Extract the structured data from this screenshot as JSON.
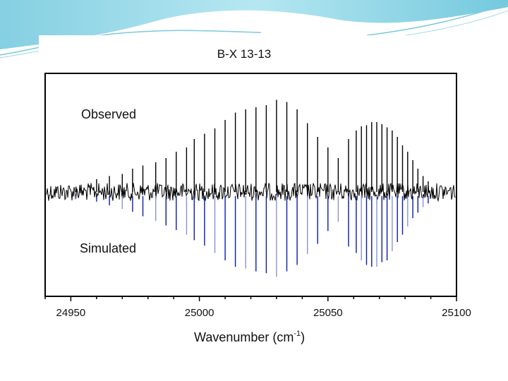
{
  "chart_data": {
    "type": "line",
    "title": "B-X 13-13",
    "xlabel": "Wavenumber (cm",
    "xlabel_superscript": "-1",
    "xlabel_close": ")",
    "xlim": [
      24940,
      25100
    ],
    "ylim": [
      -1.0,
      1.0
    ],
    "x_ticks": [
      24950,
      25000,
      25050,
      25100
    ],
    "x_tick_labels": [
      "24950",
      "25000",
      "25050",
      "25100"
    ],
    "series": [
      {
        "name": "Observed",
        "color": "#000000",
        "direction": "up",
        "baseline_noise": 0.06,
        "x": [
          24952,
          24960,
          24965,
          24970,
          24974,
          24978,
          24983,
          24987,
          24991,
          24995,
          24998,
          25002,
          25006,
          25010,
          25014,
          25018,
          25022,
          25026,
          25030,
          25034,
          25038,
          25042,
          25046,
          25050,
          25054,
          25058,
          25061,
          25063,
          25065,
          25067,
          25069,
          25071,
          25073,
          25075,
          25077,
          25079,
          25081,
          25083,
          25085,
          25087,
          25089
        ],
        "values": [
          0.05,
          0.12,
          0.15,
          0.17,
          0.22,
          0.25,
          0.28,
          0.32,
          0.38,
          0.42,
          0.5,
          0.55,
          0.6,
          0.68,
          0.75,
          0.78,
          0.8,
          0.82,
          0.87,
          0.85,
          0.78,
          0.65,
          0.52,
          0.42,
          0.32,
          0.5,
          0.58,
          0.62,
          0.63,
          0.66,
          0.66,
          0.64,
          0.61,
          0.58,
          0.52,
          0.44,
          0.38,
          0.3,
          0.22,
          0.15,
          0.1
        ]
      },
      {
        "name": "Simulated",
        "color": "#0a1aa8",
        "direction": "down",
        "baseline_noise": 0.0,
        "x": [
          24952,
          24960,
          24965,
          24970,
          24974,
          24978,
          24983,
          24987,
          24991,
          24995,
          24998,
          25002,
          25006,
          25010,
          25014,
          25018,
          25022,
          25026,
          25030,
          25034,
          25038,
          25042,
          25046,
          25050,
          25054,
          25058,
          25061,
          25063,
          25065,
          25067,
          25069,
          25071,
          25073,
          25075,
          25077,
          25079,
          25081,
          25083,
          25085,
          25087,
          25089
        ],
        "values": [
          0.03,
          0.06,
          0.1,
          0.14,
          0.17,
          0.22,
          0.27,
          0.32,
          0.37,
          0.42,
          0.48,
          0.54,
          0.62,
          0.7,
          0.77,
          0.79,
          0.82,
          0.84,
          0.88,
          0.82,
          0.75,
          0.63,
          0.52,
          0.38,
          0.28,
          0.55,
          0.62,
          0.7,
          0.75,
          0.77,
          0.77,
          0.72,
          0.7,
          0.6,
          0.5,
          0.42,
          0.33,
          0.24,
          0.18,
          0.12,
          0.08
        ]
      }
    ]
  }
}
